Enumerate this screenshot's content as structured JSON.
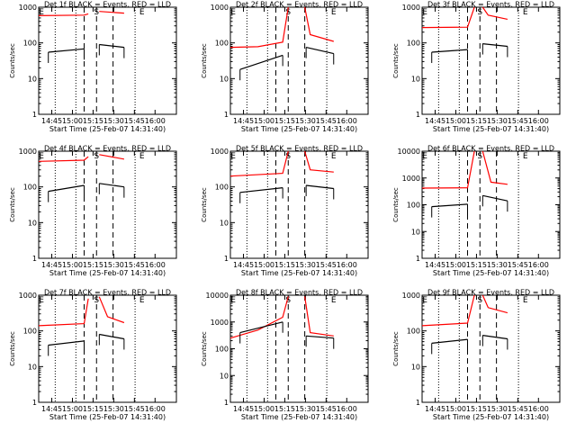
{
  "chart_data": [
    {
      "type": "line",
      "title": "Det 1f BLACK = Events, RED = LLD",
      "xlabel": "Start Time (25-Feb-07 14:31:40)",
      "ylabel": "Counts/sec",
      "xticks": [
        "14:45",
        "15:00",
        "15:15",
        "15:30",
        "15:45",
        "16:00"
      ],
      "yticks": [
        "1",
        "10",
        "100",
        "1000"
      ],
      "ylim": [
        1,
        1000
      ],
      "log_y": true,
      "markers": [
        "E",
        "S",
        "E"
      ],
      "series": [
        {
          "color": "#ff0000",
          "segments": [
            [
              [
                0.0,
                580
              ],
              [
                0.33,
                600
              ],
              [
                0.36,
                650
              ]
            ],
            [
              [
                0.44,
                760
              ],
              [
                0.62,
                680
              ]
            ]
          ]
        },
        {
          "color": "#000000",
          "segments": [
            [
              [
                0.07,
                55
              ],
              [
                0.33,
                68
              ]
            ],
            [
              [
                0.44,
                90
              ],
              [
                0.62,
                75
              ]
            ]
          ]
        }
      ]
    },
    {
      "type": "line",
      "title": "Det 2f BLACK = Events, RED = LLD",
      "xlabel": "Start Time (25-Feb-07 14:31:40)",
      "ylabel": "Counts/sec",
      "xticks": [
        "14:45",
        "15:00",
        "15:15",
        "15:30",
        "15:45",
        "16:00"
      ],
      "yticks": [
        "1",
        "10",
        "100",
        "1000"
      ],
      "ylim": [
        1,
        1000
      ],
      "log_y": true,
      "markers": [
        "E",
        "S",
        "E"
      ],
      "series": [
        {
          "color": "#ff0000",
          "segments": [
            [
              [
                0.0,
                75
              ],
              [
                0.2,
                78
              ],
              [
                0.38,
                105
              ],
              [
                0.42,
                1000
              ]
            ],
            [
              [
                0.54,
                1000
              ],
              [
                0.58,
                170
              ],
              [
                0.75,
                110
              ]
            ]
          ]
        },
        {
          "color": "#000000",
          "segments": [
            [
              [
                0.07,
                18
              ],
              [
                0.38,
                45
              ]
            ],
            [
              [
                0.55,
                75
              ],
              [
                0.75,
                50
              ]
            ]
          ]
        }
      ]
    },
    {
      "type": "line",
      "title": "Det 3f BLACK = Events, RED = LLD",
      "xlabel": "Start Time (25-Feb-07 14:31:40)",
      "ylabel": "Counts/sec",
      "xticks": [
        "14:45",
        "15:00",
        "15:15",
        "15:30",
        "15:45",
        "16:00"
      ],
      "yticks": [
        "1",
        "10",
        "100",
        "1000"
      ],
      "ylim": [
        1,
        1000
      ],
      "log_y": true,
      "markers": [
        "E",
        "S",
        "E"
      ],
      "series": [
        {
          "color": "#ff0000",
          "segments": [
            [
              [
                0.0,
                270
              ],
              [
                0.33,
                275
              ],
              [
                0.38,
                1000
              ]
            ],
            [
              [
                0.44,
                1000
              ],
              [
                0.48,
                600
              ],
              [
                0.62,
                460
              ]
            ]
          ]
        },
        {
          "color": "#000000",
          "segments": [
            [
              [
                0.07,
                55
              ],
              [
                0.33,
                65
              ]
            ],
            [
              [
                0.44,
                95
              ],
              [
                0.62,
                80
              ]
            ]
          ]
        }
      ]
    },
    {
      "type": "line",
      "title": "Det 4f BLACK = Events, RED = LLD",
      "xlabel": "Start Time (25-Feb-07 14:31:40)",
      "ylabel": "Counts/sec",
      "xticks": [
        "14:45",
        "15:00",
        "15:15",
        "15:30",
        "15:45",
        "16:00"
      ],
      "yticks": [
        "1",
        "10",
        "100",
        "1000"
      ],
      "ylim": [
        1,
        1000
      ],
      "log_y": true,
      "markers": [
        "E",
        "S",
        "E"
      ],
      "series": [
        {
          "color": "#ff0000",
          "segments": [
            [
              [
                0.0,
                520
              ],
              [
                0.33,
                560
              ],
              [
                0.36,
                700
              ]
            ],
            [
              [
                0.44,
                800
              ],
              [
                0.62,
                600
              ]
            ]
          ]
        },
        {
          "color": "#000000",
          "segments": [
            [
              [
                0.07,
                75
              ],
              [
                0.33,
                110
              ]
            ],
            [
              [
                0.44,
                125
              ],
              [
                0.62,
                100
              ]
            ]
          ]
        }
      ]
    },
    {
      "type": "line",
      "title": "Det 5f BLACK = Events, RED = LLD",
      "xlabel": "Start Time (25-Feb-07 14:31:40)",
      "ylabel": "Counts/sec",
      "xticks": [
        "14:45",
        "15:00",
        "15:15",
        "15:30",
        "15:45",
        "16:00"
      ],
      "yticks": [
        "1",
        "10",
        "100",
        "1000"
      ],
      "ylim": [
        1,
        1000
      ],
      "log_y": true,
      "markers": [
        "E",
        "S",
        "E"
      ],
      "series": [
        {
          "color": "#ff0000",
          "segments": [
            [
              [
                0.0,
                200
              ],
              [
                0.38,
                240
              ],
              [
                0.42,
                1000
              ]
            ],
            [
              [
                0.54,
                1000
              ],
              [
                0.58,
                300
              ],
              [
                0.75,
                260
              ]
            ]
          ]
        },
        {
          "color": "#000000",
          "segments": [
            [
              [
                0.07,
                70
              ],
              [
                0.38,
                95
              ]
            ],
            [
              [
                0.55,
                110
              ],
              [
                0.75,
                90
              ]
            ]
          ]
        }
      ]
    },
    {
      "type": "line",
      "title": "Det 6f BLACK = Events, RED = LLD",
      "xlabel": "Start Time (25-Feb-07 14:31:40)",
      "ylabel": "Counts/sec",
      "xticks": [
        "14:45",
        "15:00",
        "15:15",
        "15:30",
        "15:45",
        "16:00"
      ],
      "yticks": [
        "1",
        "10",
        "100",
        "1000",
        "10000"
      ],
      "ylim": [
        1,
        10000
      ],
      "log_y": true,
      "markers": [
        "E",
        "S",
        "E"
      ],
      "series": [
        {
          "color": "#ff0000",
          "segments": [
            [
              [
                0.0,
                420
              ],
              [
                0.33,
                430
              ],
              [
                0.38,
                10000
              ]
            ],
            [
              [
                0.44,
                10000
              ],
              [
                0.5,
                700
              ],
              [
                0.62,
                580
              ]
            ]
          ]
        },
        {
          "color": "#000000",
          "segments": [
            [
              [
                0.07,
                85
              ],
              [
                0.33,
                105
              ]
            ],
            [
              [
                0.44,
                220
              ],
              [
                0.62,
                140
              ]
            ]
          ]
        }
      ]
    },
    {
      "type": "line",
      "title": "Det 7f BLACK = Events, RED = LLD",
      "xlabel": "Start Time (25-Feb-07 14:31:40)",
      "ylabel": "Counts/sec",
      "xticks": [
        "14:45",
        "15:00",
        "15:15",
        "15:30",
        "15:45",
        "16:00"
      ],
      "yticks": [
        "1",
        "10",
        "100",
        "1000"
      ],
      "ylim": [
        1,
        1000
      ],
      "log_y": true,
      "markers": [
        "E",
        "S",
        "E"
      ],
      "series": [
        {
          "color": "#ff0000",
          "segments": [
            [
              [
                0.0,
                140
              ],
              [
                0.33,
                160
              ],
              [
                0.36,
                800
              ]
            ],
            [
              [
                0.44,
                900
              ],
              [
                0.5,
                250
              ],
              [
                0.62,
                170
              ]
            ]
          ]
        },
        {
          "color": "#000000",
          "segments": [
            [
              [
                0.07,
                40
              ],
              [
                0.33,
                52
              ]
            ],
            [
              [
                0.44,
                80
              ],
              [
                0.62,
                60
              ]
            ]
          ]
        }
      ]
    },
    {
      "type": "line",
      "title": "Det 8f BLACK = Events, RED = LLD",
      "xlabel": "Start Time (25-Feb-07 14:31:40)",
      "ylabel": "Counts/sec",
      "xticks": [
        "14:45",
        "15:00",
        "15:15",
        "15:30",
        "15:45",
        "16:00"
      ],
      "yticks": [
        "1",
        "10",
        "100",
        "1000",
        "10000"
      ],
      "ylim": [
        1,
        10000
      ],
      "log_y": true,
      "markers": [
        "E",
        "S",
        "E"
      ],
      "series": [
        {
          "color": "#ff0000",
          "segments": [
            [
              [
                0.0,
                250
              ],
              [
                0.2,
                500
              ],
              [
                0.38,
                1500
              ],
              [
                0.42,
                9000
              ]
            ],
            [
              [
                0.54,
                9000
              ],
              [
                0.58,
                400
              ],
              [
                0.75,
                300
              ]
            ]
          ]
        },
        {
          "color": "#000000",
          "segments": [
            [
              [
                0.07,
                400
              ],
              [
                0.38,
                1000
              ]
            ],
            [
              [
                0.55,
                300
              ],
              [
                0.75,
                250
              ]
            ]
          ]
        }
      ]
    },
    {
      "type": "line",
      "title": "Det 9f BLACK = Events, RED = LLD",
      "xlabel": "Start Time (25-Feb-07 14:31:40)",
      "ylabel": "Counts/sec",
      "xticks": [
        "14:45",
        "15:00",
        "15:15",
        "15:30",
        "15:45",
        "16:00"
      ],
      "yticks": [
        "1",
        "10",
        "100",
        "1000"
      ],
      "ylim": [
        1,
        1000
      ],
      "log_y": true,
      "markers": [
        "E",
        "S",
        "E"
      ],
      "series": [
        {
          "color": "#ff0000",
          "segments": [
            [
              [
                0.0,
                140
              ],
              [
                0.33,
                165
              ],
              [
                0.38,
                1000
              ]
            ],
            [
              [
                0.44,
                1000
              ],
              [
                0.48,
                450
              ],
              [
                0.62,
                320
              ]
            ]
          ]
        },
        {
          "color": "#000000",
          "segments": [
            [
              [
                0.07,
                45
              ],
              [
                0.33,
                58
              ]
            ],
            [
              [
                0.44,
                75
              ],
              [
                0.62,
                60
              ]
            ]
          ]
        }
      ]
    }
  ]
}
